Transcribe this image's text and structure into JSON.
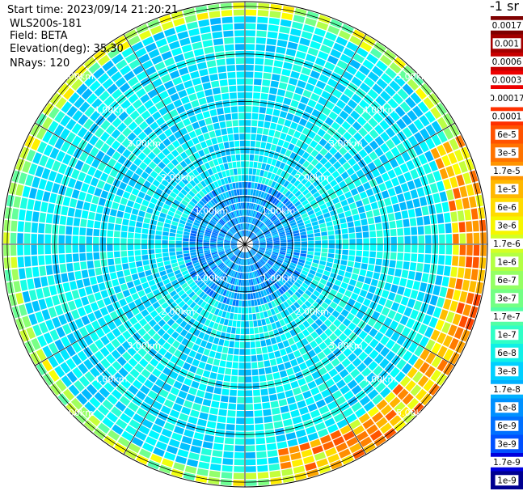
{
  "header": {
    "start_time": "Start time: 2023/09/14 21:20:21",
    "instrument": "WLS200s-181",
    "field": "Field: BETA",
    "elevation": "Elevation(deg): 35.30",
    "nrays": "NRays: 120"
  },
  "colorbar": {
    "unit_label": "-1 sr",
    "labels": [
      "0.0017",
      "0.001",
      "0.0006",
      "0.0003",
      "0.00017",
      "0.0001",
      "6e-5",
      "3e-5",
      "1.7e-5",
      "1e-5",
      "6e-6",
      "3e-6",
      "1.7e-6",
      "1e-6",
      "6e-7",
      "3e-7",
      "1.7e-7",
      "1e-7",
      "6e-8",
      "3e-8",
      "1.7e-8",
      "1e-8",
      "6e-9",
      "3e-9",
      "1.7e-9",
      "1e-9"
    ],
    "colors": [
      "#7f0000",
      "#a30000",
      "#c80000",
      "#ed0000",
      "#ffffff",
      "#ff3000",
      "#ff5200",
      "#ff7300",
      "#ff9400",
      "#ffb800",
      "#ffdb00",
      "#f6f600",
      "#d3ff24",
      "#b3ff44",
      "#94ff63",
      "#73ff84",
      "#52ffa5",
      "#30ffc6",
      "#10f0e6",
      "#00d0ff",
      "#00b0ff",
      "#0090ff",
      "#0070ff",
      "#0050ff",
      "#0000dd",
      "#000090"
    ]
  },
  "chart_data": {
    "type": "heatmap",
    "projection": "polar (PPI scan)",
    "field": "BETA",
    "n_rays": 120,
    "range_rings_km": [
      1.0,
      2.0,
      3.0,
      4.0,
      5.0
    ],
    "range_ring_labels": [
      "1.00km",
      "2.00km",
      "3.00km",
      "4.00km",
      "5.00km"
    ],
    "max_range_km": 5.1,
    "spoke_angles_deg": [
      0,
      30,
      60,
      90,
      120,
      150,
      180,
      210,
      240,
      270,
      300,
      330
    ],
    "colormap": "jet (log scale)",
    "value_range": [
      1e-09,
      0.0017
    ],
    "ring_label_color": "#ffffff",
    "grid_color": "#000000"
  }
}
